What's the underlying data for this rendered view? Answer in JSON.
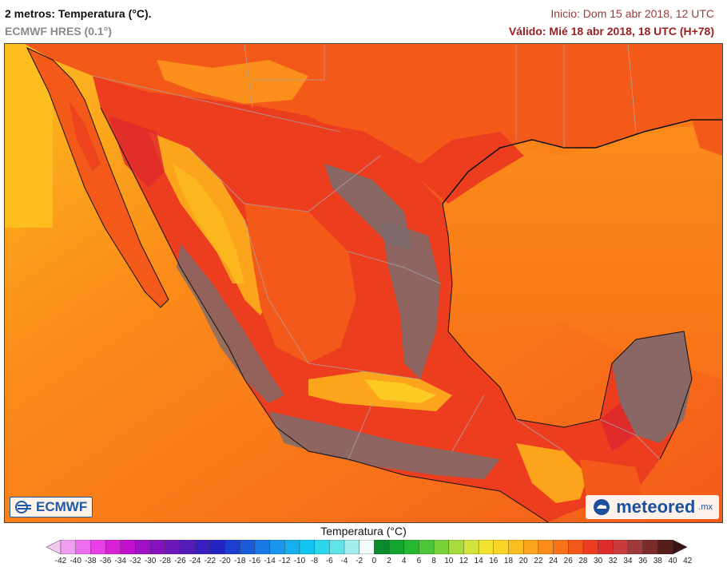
{
  "header": {
    "title": "2 metros: Temperatura (°C).",
    "model": "ECMWF HRES (0.1°)",
    "init": "Inicio: Dom 15 abr 2018, 12 UTC",
    "valid": "Válido: Mié 18 abr 2018, 18 UTC (H+78)"
  },
  "logos": {
    "ecmwf": "ECMWF",
    "meteored": "meteored",
    "meteored_tld": ".mx"
  },
  "legend": {
    "title": "Temperatura (°C)",
    "ticks": [
      "-42",
      "-40",
      "-38",
      "-36",
      "-34",
      "-32",
      "-30",
      "-28",
      "-26",
      "-24",
      "-22",
      "-20",
      "-18",
      "-16",
      "-14",
      "-12",
      "-10",
      "-8",
      "-6",
      "-4",
      "-2",
      "0",
      "2",
      "4",
      "6",
      "8",
      "10",
      "12",
      "14",
      "16",
      "18",
      "20",
      "22",
      "24",
      "26",
      "28",
      "30",
      "32",
      "34",
      "36",
      "38",
      "40",
      "42"
    ],
    "colors": [
      "#f5c8f2",
      "#f29ef0",
      "#ee6fee",
      "#e640e6",
      "#d820d8",
      "#bf10cc",
      "#a010c4",
      "#8512bd",
      "#6d18bb",
      "#551cba",
      "#3a1fbf",
      "#2424c4",
      "#1c3fd0",
      "#1a5bdc",
      "#1a78e6",
      "#1a95ec",
      "#17aef0",
      "#12c4f0",
      "#2cd6ec",
      "#5fe3e8",
      "#a3ecec",
      "#f4fbfb",
      "#0a8a2a",
      "#12a42e",
      "#26b833",
      "#4ac636",
      "#7ad23a",
      "#a8dc3c",
      "#d2e43c",
      "#f2e230",
      "#fbd425",
      "#fcbd1f",
      "#fca51c",
      "#fb8c1a",
      "#f87219",
      "#f35a1a",
      "#ec3e1e",
      "#df2b2b",
      "#c83c3c",
      "#a03a3a",
      "#7c2b2b",
      "#561d1d",
      "#3a1414"
    ]
  },
  "map_colors": {
    "ocean_cool": "#fcbc1c",
    "ocean_warm": "#f87219",
    "land_hot": "#ec3e1e",
    "land_very_hot": "#df2b2b",
    "highlands": "#7e6c6c",
    "border": "#a8a8a8",
    "coast": "#111111"
  }
}
